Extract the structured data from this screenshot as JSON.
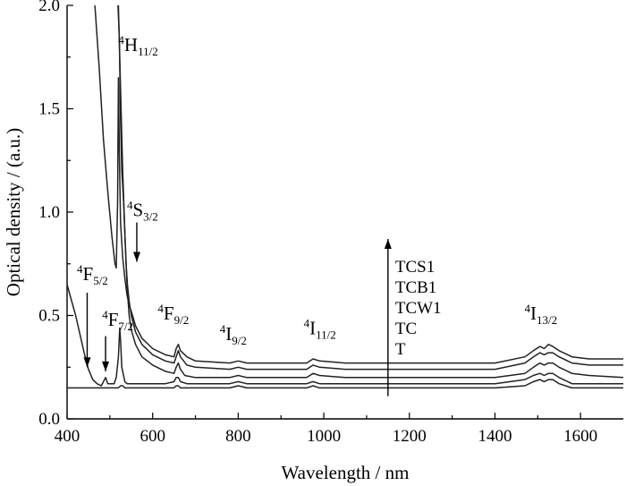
{
  "chart_data": {
    "type": "line",
    "xlabel": "Wavelength / nm",
    "ylabel": "Optical density / (a.u.)",
    "xlim": [
      400,
      1700
    ],
    "ylim": [
      0.0,
      2.0
    ],
    "x_ticks": [
      400,
      600,
      800,
      1000,
      1200,
      1400,
      1600
    ],
    "y_ticks": [
      0.0,
      0.5,
      1.0,
      1.5,
      2.0
    ],
    "y_tick_labels": [
      "0.0",
      "0.5",
      "1.0",
      "1.5",
      "2.0"
    ],
    "grid": false,
    "legend_placement": "center-right",
    "legend_order_top_to_bottom": [
      "TCS1",
      "TCB1",
      "TCW1",
      "TC",
      "T"
    ],
    "series": [
      {
        "name": "T",
        "x": [
          400,
          430,
          445,
          460,
          480,
          490,
          495,
          500,
          510,
          515,
          520,
          525,
          530,
          535,
          540,
          545,
          550,
          560,
          600,
          640,
          650,
          655,
          660,
          665,
          680,
          700,
          780,
          800,
          820,
          900,
          960,
          975,
          990,
          1050,
          1200,
          1400,
          1470,
          1490,
          1505,
          1515,
          1525,
          1535,
          1550,
          1580,
          1620,
          1700
        ],
        "y": [
          0.15,
          0.15,
          0.15,
          0.15,
          0.15,
          0.15,
          0.15,
          0.15,
          0.15,
          0.15,
          0.15,
          0.16,
          0.16,
          0.15,
          0.15,
          0.15,
          0.15,
          0.15,
          0.15,
          0.15,
          0.15,
          0.16,
          0.16,
          0.15,
          0.15,
          0.15,
          0.15,
          0.16,
          0.15,
          0.15,
          0.15,
          0.16,
          0.15,
          0.15,
          0.15,
          0.15,
          0.16,
          0.18,
          0.19,
          0.18,
          0.19,
          0.19,
          0.17,
          0.15,
          0.15,
          0.15
        ]
      },
      {
        "name": "TC",
        "x": [
          400,
          420,
          440,
          450,
          460,
          470,
          480,
          485,
          490,
          495,
          500,
          510,
          515,
          520,
          523,
          525,
          528,
          535,
          540,
          545,
          550,
          560,
          580,
          600,
          630,
          650,
          655,
          660,
          665,
          680,
          700,
          780,
          800,
          820,
          900,
          960,
          975,
          990,
          1050,
          1200,
          1400,
          1470,
          1490,
          1505,
          1515,
          1525,
          1535,
          1550,
          1580,
          1620,
          1700
        ],
        "y": [
          0.65,
          0.5,
          0.32,
          0.24,
          0.19,
          0.17,
          0.16,
          0.18,
          0.2,
          0.17,
          0.17,
          0.17,
          0.2,
          0.3,
          0.44,
          0.38,
          0.25,
          0.18,
          0.17,
          0.17,
          0.17,
          0.17,
          0.17,
          0.17,
          0.17,
          0.18,
          0.2,
          0.2,
          0.18,
          0.17,
          0.17,
          0.17,
          0.18,
          0.17,
          0.17,
          0.17,
          0.18,
          0.17,
          0.17,
          0.17,
          0.17,
          0.19,
          0.21,
          0.22,
          0.21,
          0.22,
          0.22,
          0.2,
          0.17,
          0.17,
          0.17
        ]
      },
      {
        "name": "TCW1",
        "x": [
          520,
          525,
          530,
          535,
          540,
          545,
          550,
          560,
          575,
          600,
          630,
          650,
          655,
          660,
          665,
          675,
          700,
          780,
          800,
          820,
          900,
          960,
          975,
          990,
          1050,
          1200,
          1400,
          1470,
          1490,
          1505,
          1515,
          1525,
          1535,
          1550,
          1580,
          1620,
          1700
        ],
        "y": [
          2.0,
          1.6,
          1.2,
          0.9,
          0.65,
          0.5,
          0.43,
          0.36,
          0.3,
          0.26,
          0.23,
          0.22,
          0.25,
          0.27,
          0.24,
          0.21,
          0.2,
          0.2,
          0.21,
          0.2,
          0.2,
          0.2,
          0.22,
          0.21,
          0.2,
          0.2,
          0.2,
          0.22,
          0.25,
          0.27,
          0.26,
          0.27,
          0.27,
          0.25,
          0.22,
          0.21,
          0.2
        ]
      },
      {
        "name": "TCB1",
        "x": [
          519,
          522,
          525,
          528,
          532,
          535,
          538,
          541,
          545,
          550,
          560,
          575,
          600,
          630,
          650,
          655,
          660,
          665,
          680,
          700,
          780,
          800,
          820,
          900,
          960,
          975,
          990,
          1050,
          1200,
          1400,
          1470,
          1490,
          1505,
          1515,
          1525,
          1535,
          1550,
          1580,
          1620,
          1700
        ],
        "y": [
          2.0,
          1.85,
          1.45,
          1.2,
          1.05,
          0.9,
          0.75,
          0.65,
          0.57,
          0.5,
          0.42,
          0.36,
          0.31,
          0.28,
          0.27,
          0.3,
          0.33,
          0.3,
          0.26,
          0.25,
          0.24,
          0.25,
          0.24,
          0.24,
          0.24,
          0.26,
          0.25,
          0.24,
          0.24,
          0.24,
          0.27,
          0.3,
          0.32,
          0.31,
          0.32,
          0.32,
          0.3,
          0.27,
          0.26,
          0.26
        ]
      },
      {
        "name": "TCS1",
        "x": [
          465,
          475,
          485,
          495,
          505,
          512,
          515,
          518,
          520,
          522,
          525,
          530,
          535,
          540,
          545,
          550,
          560,
          575,
          600,
          630,
          650,
          655,
          660,
          665,
          680,
          700,
          780,
          800,
          820,
          900,
          960,
          975,
          990,
          1050,
          1200,
          1400,
          1470,
          1490,
          1505,
          1515,
          1525,
          1535,
          1550,
          1580,
          1620,
          1700
        ],
        "y": [
          2.0,
          1.7,
          1.35,
          1.1,
          0.88,
          0.75,
          0.73,
          1.05,
          1.65,
          1.3,
          0.95,
          0.78,
          0.68,
          0.6,
          0.55,
          0.52,
          0.45,
          0.39,
          0.34,
          0.31,
          0.3,
          0.34,
          0.36,
          0.33,
          0.3,
          0.28,
          0.27,
          0.28,
          0.27,
          0.27,
          0.27,
          0.29,
          0.28,
          0.27,
          0.27,
          0.27,
          0.3,
          0.33,
          0.35,
          0.34,
          0.36,
          0.35,
          0.33,
          0.3,
          0.29,
          0.29
        ]
      }
    ],
    "annotations": [
      {
        "main": "H",
        "sup": "4",
        "sub": "11/2",
        "x": 520,
        "y": 1.78
      },
      {
        "main": "S",
        "sup": "4",
        "sub": "3/2",
        "x": 540,
        "y": 0.98
      },
      {
        "main": "F",
        "sup": "4",
        "sub": "5/2",
        "x": 423,
        "y": 0.67
      },
      {
        "main": "F",
        "sup": "4",
        "sub": "7/2",
        "x": 482,
        "y": 0.45
      },
      {
        "main": "F",
        "sup": "4",
        "sub": "9/2",
        "x": 612,
        "y": 0.48
      },
      {
        "main": "I",
        "sup": "4",
        "sub": "9/2",
        "x": 757,
        "y": 0.38
      },
      {
        "main": "I",
        "sup": "4",
        "sub": "11/2",
        "x": 953,
        "y": 0.41
      },
      {
        "main": "I",
        "sup": "4",
        "sub": "13/2",
        "x": 1469,
        "y": 0.48
      }
    ],
    "arrows": [
      {
        "x": 563,
        "y_from": 0.95,
        "y_to": 0.76,
        "direction": "down"
      },
      {
        "x": 447,
        "y_from": 0.61,
        "y_to": 0.25,
        "direction": "down"
      },
      {
        "x": 490,
        "y_from": 0.4,
        "y_to": 0.23,
        "direction": "down"
      },
      {
        "x": 1150,
        "y_from": 0.11,
        "y_to": 0.87,
        "direction": "up"
      }
    ]
  }
}
